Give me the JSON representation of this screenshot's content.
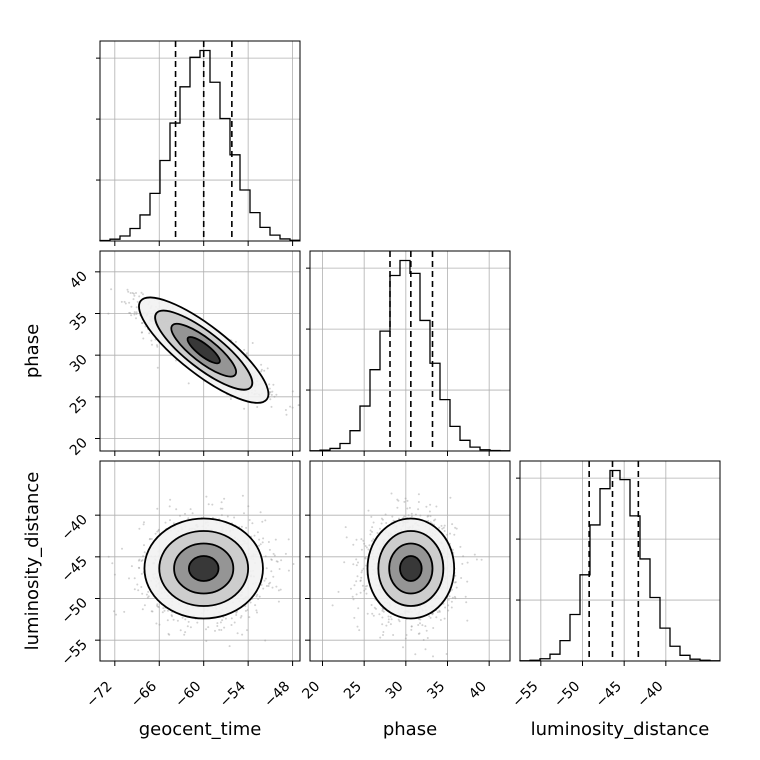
{
  "chart_data": {
    "type": "corner",
    "parameters": [
      "geocent_time",
      "phase",
      "luminosity_distance"
    ],
    "axes": {
      "geocent_time": {
        "label": "geocent_time",
        "range": [
          -74,
          -47
        ],
        "ticks": [
          -72,
          -66,
          -60,
          -54,
          -48
        ]
      },
      "phase": {
        "label": "phase",
        "range": [
          18.5,
          42.5
        ],
        "ticks": [
          20,
          25,
          30,
          35,
          40
        ]
      },
      "luminosity_distance": {
        "label": "luminosity_distance",
        "range": [
          -57.5,
          -33.5
        ],
        "ticks": [
          -55,
          -50,
          -45,
          -40
        ]
      }
    },
    "marginals": {
      "geocent_time": {
        "quantiles": [
          -63.8,
          -60.0,
          -56.2
        ],
        "bins": [
          -74,
          -72.65,
          -71.3,
          -69.95,
          -68.6,
          -67.25,
          -65.9,
          -64.55,
          -63.2,
          -61.85,
          -60.5,
          -59.15,
          -57.8,
          -56.45,
          -55.1,
          -53.75,
          -52.4,
          -51.05,
          -49.7,
          -48.35,
          -47
        ],
        "counts": [
          2,
          8,
          22,
          55,
          115,
          210,
          355,
          520,
          680,
          810,
          840,
          700,
          540,
          380,
          225,
          125,
          60,
          26,
          9,
          3
        ]
      },
      "phase": {
        "quantiles": [
          28.1,
          30.6,
          33.2
        ],
        "bins": [
          18.5,
          19.7,
          20.9,
          22.1,
          23.3,
          24.5,
          25.7,
          26.9,
          28.1,
          29.3,
          30.5,
          31.7,
          32.9,
          34.1,
          35.3,
          36.5,
          37.7,
          38.9,
          40.1,
          41.3,
          42.5
        ],
        "counts": [
          1,
          4,
          12,
          35,
          95,
          210,
          380,
          560,
          820,
          890,
          830,
          610,
          410,
          240,
          115,
          50,
          18,
          6,
          2,
          1
        ]
      },
      "luminosity_distance": {
        "quantiles": [
          -49.2,
          -46.4,
          -43.3
        ],
        "bins": [
          -57.5,
          -56.3,
          -55.1,
          -53.9,
          -52.7,
          -51.5,
          -50.3,
          -49.1,
          -47.9,
          -46.7,
          -45.5,
          -44.3,
          -43.1,
          -41.9,
          -40.7,
          -39.5,
          -38.3,
          -37.1,
          -35.9,
          -34.7,
          -33.5
        ],
        "counts": [
          1,
          3,
          10,
          30,
          90,
          205,
          380,
          600,
          760,
          840,
          800,
          640,
          450,
          280,
          145,
          65,
          25,
          8,
          3,
          1
        ]
      }
    },
    "pairs": [
      {
        "x": "geocent_time",
        "y": "phase",
        "mean": [
          -60.0,
          30.6
        ],
        "sd": [
          4.0,
          2.6
        ],
        "corr": -0.86
      },
      {
        "x": "geocent_time",
        "y": "luminosity_distance",
        "mean": [
          -60.0,
          -46.4
        ],
        "sd": [
          4.0,
          3.0
        ],
        "corr": 0.0
      },
      {
        "x": "phase",
        "y": "luminosity_distance",
        "mean": [
          30.6,
          -46.4
        ],
        "sd": [
          2.6,
          3.0
        ],
        "corr": 0.0
      }
    ],
    "contour_levels": [
      "0.5σ",
      "1σ",
      "1.5σ",
      "2σ"
    ],
    "grid": true
  }
}
